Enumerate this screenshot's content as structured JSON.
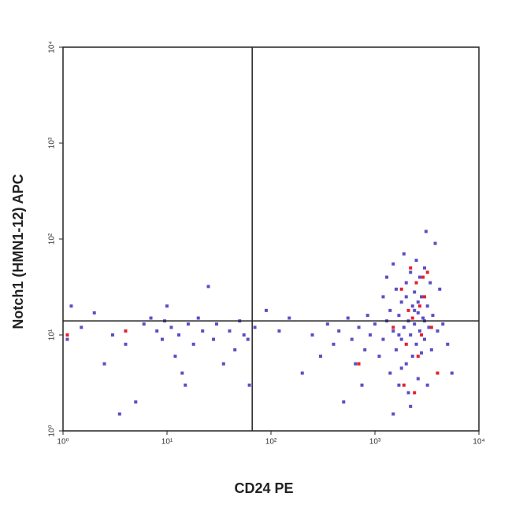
{
  "chart_data": {
    "type": "scatter",
    "x_label": "CD24 PE",
    "y_label": "Notch1 (HMN1-12) APC",
    "log_scale": true,
    "xlim": [
      1,
      10000
    ],
    "ylim": [
      1,
      10000
    ],
    "xticks": [
      {
        "value": 1,
        "label": "10⁰"
      },
      {
        "value": 10,
        "label": "10¹"
      },
      {
        "value": 100,
        "label": "10²"
      },
      {
        "value": 1000,
        "label": "10³"
      },
      {
        "value": 10000,
        "label": "10⁴"
      }
    ],
    "yticks": [
      {
        "value": 1,
        "label": "10⁰"
      },
      {
        "value": 10,
        "label": "10¹"
      },
      {
        "value": 100,
        "label": "10²"
      },
      {
        "value": 1000,
        "label": "10³"
      },
      {
        "value": 10000,
        "label": "10⁴"
      }
    ],
    "quadrant_x": 66,
    "quadrant_y": 14,
    "series": [
      {
        "color": "#5a4fc4",
        "x": [
          1.2,
          1.5,
          2,
          2.5,
          3,
          4,
          5,
          6,
          7,
          8,
          9,
          10,
          11,
          12,
          13,
          14,
          16,
          18,
          20,
          22,
          25,
          28,
          30,
          35,
          40,
          45,
          50,
          55,
          60,
          62,
          3.5,
          1.1,
          9.5,
          15,
          70,
          90,
          120,
          150,
          200,
          250,
          300,
          350,
          400,
          450,
          500,
          550,
          600,
          650,
          700,
          750,
          800,
          850,
          900,
          1000,
          1100,
          1200,
          1200,
          1300,
          1300,
          1400,
          1400,
          1500,
          1500,
          1600,
          1600,
          1700,
          1700,
          1800,
          1800,
          1900,
          1900,
          2000,
          2000,
          2100,
          2100,
          2200,
          2200,
          2300,
          2300,
          2400,
          2400,
          2500,
          2500,
          2600,
          2600,
          2700,
          2700,
          2800,
          2800,
          2900,
          3000,
          3000,
          3100,
          3200,
          3300,
          3400,
          3500,
          3600,
          3800,
          4000,
          4200,
          4500,
          5000,
          5500,
          1500,
          2200,
          3200,
          1800,
          2600,
          3000,
          2400,
          2000,
          1700
        ],
        "y": [
          20,
          12,
          17,
          5,
          10,
          8,
          2,
          13,
          15,
          11,
          9,
          20,
          12,
          6,
          10,
          4,
          13,
          8,
          15,
          11,
          32,
          9,
          13,
          5,
          11,
          7,
          14,
          10,
          9,
          3,
          1.5,
          9,
          14,
          3,
          12,
          18,
          11,
          15,
          4,
          10,
          6,
          13,
          8,
          11,
          2,
          15,
          9,
          5,
          12,
          3,
          7,
          16,
          10,
          13,
          6,
          25,
          9,
          40,
          14,
          4,
          18,
          11,
          55,
          7,
          30,
          3,
          16,
          22,
          9,
          70,
          12,
          5,
          35,
          14,
          2.5,
          45,
          10,
          20,
          6,
          28,
          13,
          60,
          8,
          17,
          3.5,
          40,
          11,
          25,
          6.5,
          15,
          50,
          9,
          120,
          20,
          12,
          35,
          7,
          16,
          90,
          11,
          30,
          13,
          8,
          4,
          1.5,
          1.8,
          3,
          4.5,
          22,
          14,
          18,
          25,
          10
        ]
      },
      {
        "color": "#e8202a",
        "x": [
          4,
          1.1,
          700,
          1500,
          1800,
          2000,
          2200,
          2300,
          2500,
          2600,
          2700,
          2800,
          3000,
          3200,
          3500,
          1900,
          2400,
          2900,
          2100,
          4000
        ],
        "y": [
          11,
          10,
          5,
          12,
          30,
          8,
          50,
          15,
          35,
          6,
          20,
          10,
          25,
          45,
          12,
          3,
          2.5,
          40,
          18,
          4
        ]
      }
    ]
  }
}
